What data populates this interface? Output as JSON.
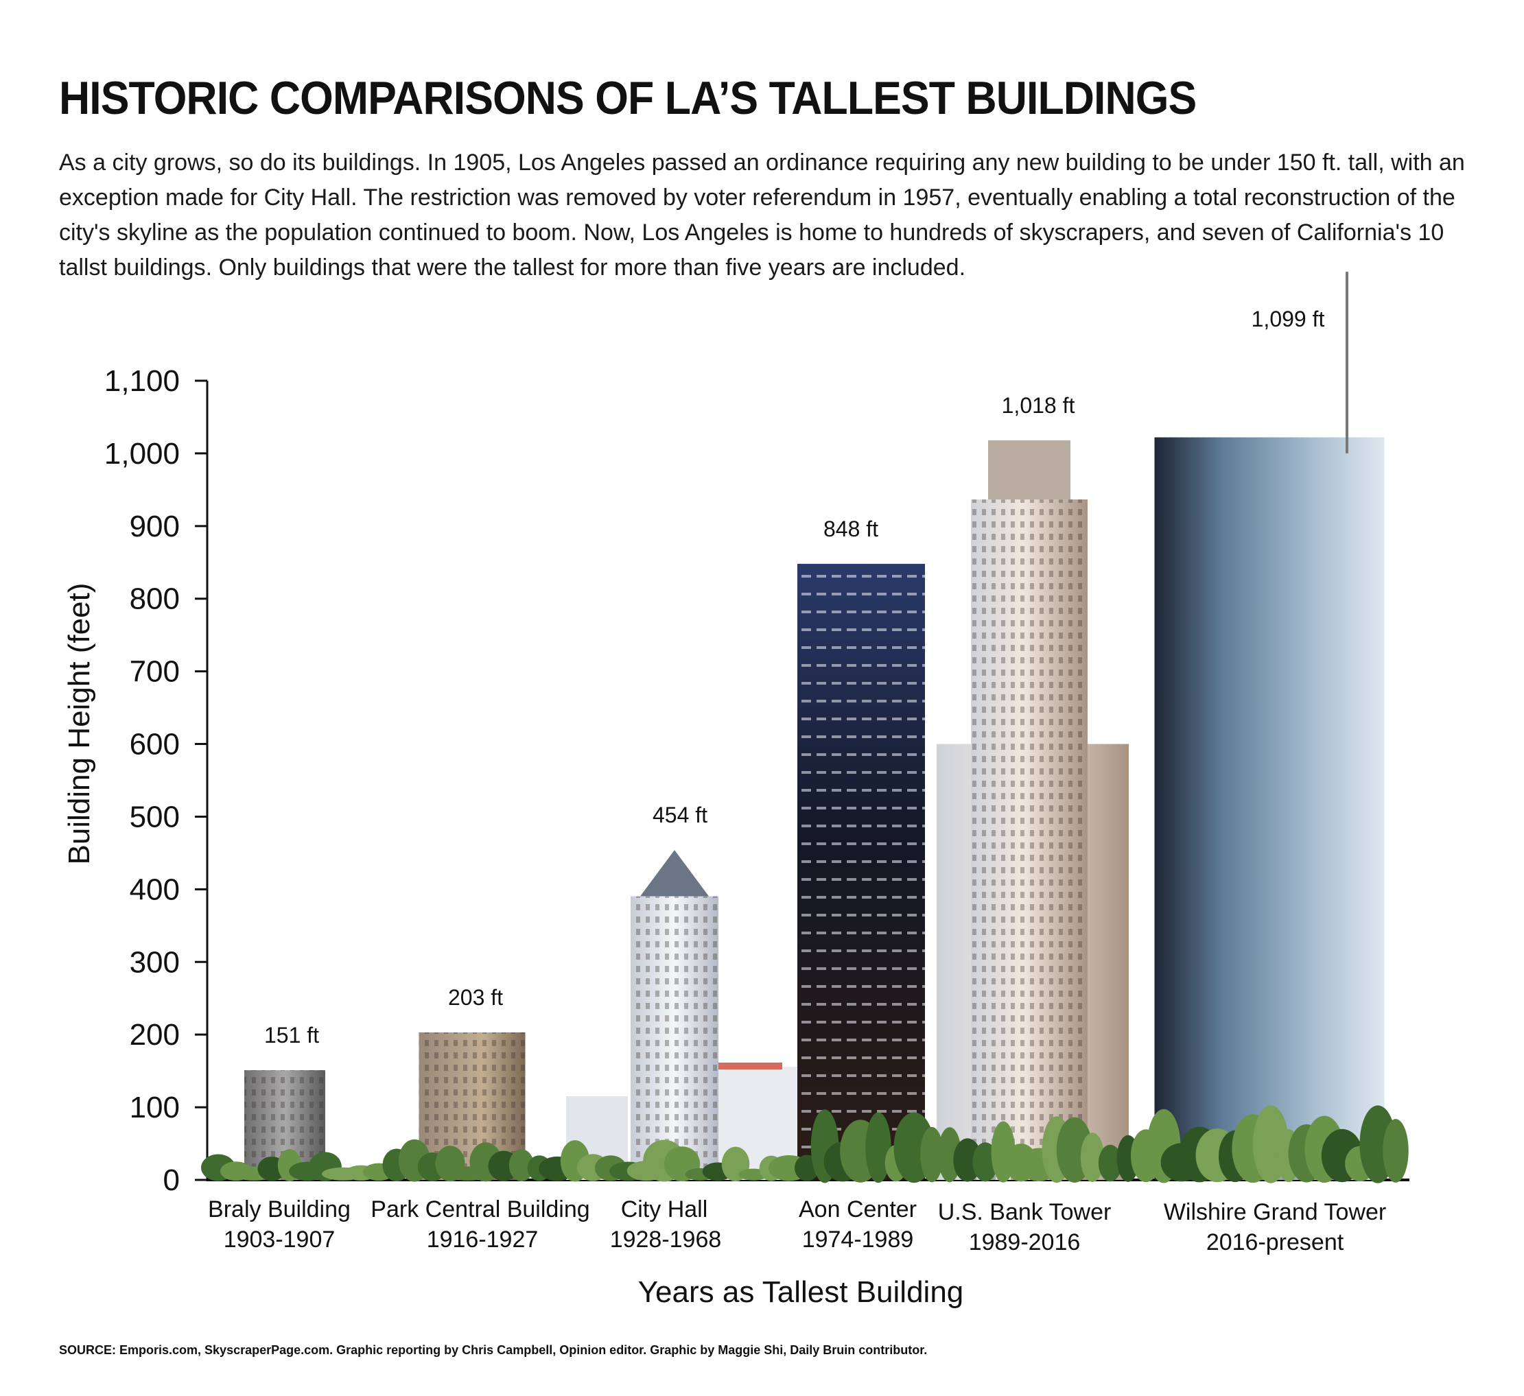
{
  "header": {
    "title": "HISTORIC COMPARISONS OF LA’S TALLEST BUILDINGS",
    "intro": "As a city grows, so do its buildings. In 1905, Los Angeles passed an ordinance requiring any new building to be under 150 ft. tall, with an exception made for City Hall. The restriction was removed by voter referendum in 1957, eventually enabling a total reconstruction of the city's skyline as the population continued to boom. Now, Los Angeles is home to hundreds of skyscrapers, and seven of California's 10 tallst buildings. Only buildings that were the tallest for more than five years are included."
  },
  "footer": {
    "source": "SOURCE: Emporis.com, SkyscraperPage.com. Graphic reporting by Chris Campbell, Opinion editor. Graphic by Maggie Shi, Daily Bruin contributor."
  },
  "chart_data": {
    "type": "bar",
    "title": "",
    "xlabel": "Years as Tallest Building",
    "ylabel": "Building Height (feet)",
    "ylim": [
      0,
      1100
    ],
    "yticks": [
      0,
      100,
      200,
      300,
      400,
      500,
      600,
      700,
      800,
      900,
      1000,
      1100
    ],
    "ytick_labels": [
      "0",
      "100",
      "200",
      "300",
      "400",
      "500",
      "600",
      "700",
      "800",
      "900",
      "1,000",
      "1,100"
    ],
    "grid": false,
    "categories": [
      {
        "name": "Braly Building",
        "years": "1903-1907"
      },
      {
        "name": "Park Central Building",
        "years": "1916-1927"
      },
      {
        "name": "City Hall",
        "years": "1928-1968"
      },
      {
        "name": "Aon Center",
        "years": "1974-1989"
      },
      {
        "name": "U.S. Bank Tower",
        "years": "1989-2016"
      },
      {
        "name": "Wilshire Grand Tower",
        "years": "2016-present"
      }
    ],
    "values": [
      151,
      203,
      454,
      848,
      1018,
      1099
    ],
    "value_labels": [
      "151 ft",
      "203 ft",
      "454 ft",
      "848 ft",
      "1,018 ft",
      "1,099 ft"
    ],
    "colors": {
      "braly": "#8e8e8e",
      "park_central": "#b19a82",
      "city_hall": "#e6e9ee",
      "aon": "#1c1f33",
      "usbank": "#d9c8b8",
      "wilshire": "#6d8aa6",
      "trees": "#4f7a3a"
    }
  }
}
